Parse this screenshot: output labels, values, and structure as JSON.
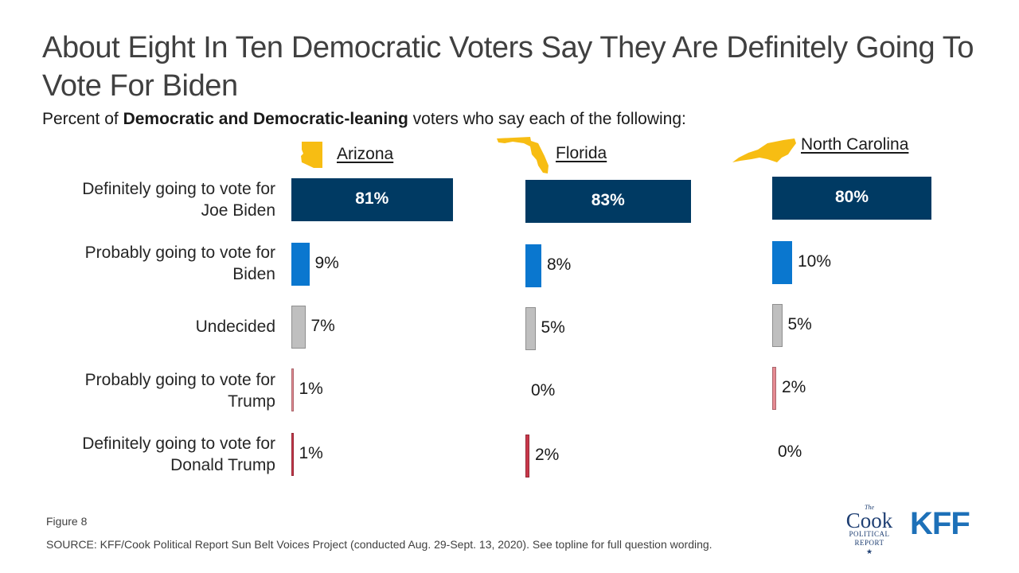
{
  "title": "About Eight In Ten Democratic Voters Say They Are Definitely Going To Vote For Biden",
  "subtitle": {
    "prefix": "Percent of ",
    "bold": "Democratic and Democratic-leaning",
    "suffix": " voters who say each of the following:"
  },
  "colors": {
    "definitely_biden": "#003a63",
    "probably_biden": "#0a77cf",
    "undecided": "#bfbfbf",
    "probably_trump": "#e58a92",
    "definitely_trump": "#c9374a",
    "state_shape": "#f7bd13"
  },
  "chart_data": {
    "type": "bar",
    "orientation": "horizontal",
    "categories": [
      "Definitely going to vote for Joe Biden",
      "Probably going to vote for Biden",
      "Undecided",
      "Probably going to vote for Trump",
      "Definitely going to vote for Donald Trump"
    ],
    "series": [
      {
        "name": "Arizona",
        "values": [
          81,
          9,
          7,
          1,
          1
        ]
      },
      {
        "name": "Florida",
        "values": [
          83,
          8,
          5,
          0,
          2
        ]
      },
      {
        "name": "North Carolina",
        "values": [
          80,
          10,
          5,
          2,
          0
        ]
      }
    ],
    "value_labels": [
      [
        "81%",
        "9%",
        "7%",
        "1%",
        "1%"
      ],
      [
        "83%",
        "8%",
        "5%",
        "0%",
        "2%"
      ],
      [
        "80%",
        "10%",
        "5%",
        "2%",
        "0%"
      ]
    ],
    "unit": "%"
  },
  "row_labels": [
    [
      "Definitely going to vote for",
      "Joe Biden"
    ],
    [
      "Probably going to vote for",
      "Biden"
    ],
    [
      "Undecided"
    ],
    [
      "Probably going to vote for",
      "Trump"
    ],
    [
      "Definitely going to vote for",
      "Donald Trump"
    ]
  ],
  "footer": {
    "figure": "Figure 8",
    "source": "SOURCE: KFF/Cook Political Report Sun Belt Voices Project (conducted Aug. 29-Sept. 13, 2020). See topline for full question wording."
  },
  "logos": {
    "cook_the": "The",
    "cook_word": "Cook",
    "cook_line1": "POLITICAL",
    "cook_line2": "REPORT",
    "cook_star": "★",
    "kff": "KFF"
  }
}
